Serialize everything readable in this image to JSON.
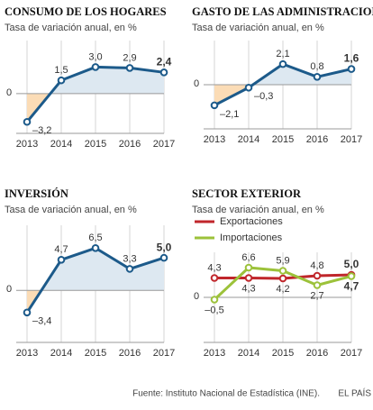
{
  "chart_data": [
    {
      "type": "line",
      "title": "CONSUMO DE LOS HOGARES",
      "subtitle": "Tasa de variación anual, en %",
      "categories": [
        "2013",
        "2014",
        "2015",
        "2016",
        "2017"
      ],
      "values": [
        -3.2,
        1.5,
        3.0,
        2.9,
        2.4
      ],
      "value_labels": [
        "–3,2",
        "1,5",
        "3,0",
        "2,9",
        "2,4"
      ],
      "color": "#1c5a8a",
      "fill_positive": "#dde8f1",
      "fill_negative": "#fbdcb6",
      "ylim": [
        -4.5,
        6
      ],
      "yticks": [
        0
      ]
    },
    {
      "type": "line",
      "title": "GASTO DE LAS ADMINISTRACIONES",
      "subtitle": "Tasa de variación anual, en %",
      "categories": [
        "2013",
        "2014",
        "2015",
        "2016",
        "2017"
      ],
      "values": [
        -2.1,
        -0.3,
        2.1,
        0.8,
        1.6
      ],
      "value_labels": [
        "–2,1",
        "–0,3",
        "2,1",
        "0,8",
        "1,6"
      ],
      "color": "#1c5a8a",
      "fill_positive": "#dde8f1",
      "fill_negative": "#fbdcb6",
      "ylim": [
        -4.5,
        4.5
      ],
      "yticks": [
        0
      ]
    },
    {
      "type": "line",
      "title": "INVERSIÓN",
      "subtitle": "Tasa de variación anual, en %",
      "categories": [
        "2013",
        "2014",
        "2015",
        "2016",
        "2017"
      ],
      "values": [
        -3.4,
        4.7,
        6.5,
        3.3,
        5.0
      ],
      "value_labels": [
        "–3,4",
        "4,7",
        "6,5",
        "3,3",
        "5,0"
      ],
      "color": "#1c5a8a",
      "fill_positive": "#dde8f1",
      "fill_negative": "#fbdcb6",
      "ylim": [
        -8,
        10
      ],
      "yticks": [
        0
      ]
    },
    {
      "type": "line",
      "title": "SECTOR EXTERIOR",
      "subtitle": "Tasa de variación anual, en %",
      "categories": [
        "2013",
        "2014",
        "2015",
        "2016",
        "2017"
      ],
      "series": [
        {
          "name": "Exportaciones",
          "color": "#c0262b",
          "values": [
            4.3,
            4.3,
            4.2,
            4.8,
            5.0
          ],
          "value_labels": [
            "4,3",
            "4,3",
            "4,2",
            "4,8",
            "5,0"
          ]
        },
        {
          "name": "Importaciones",
          "color": "#9cc23a",
          "values": [
            -0.5,
            6.6,
            5.9,
            2.7,
            4.7
          ],
          "value_labels": [
            "–0,5",
            "6,6",
            "5,9",
            "2,7",
            "4,7"
          ]
        }
      ],
      "legend": "top-left",
      "ylim": [
        -10,
        10
      ],
      "yticks": [
        0
      ]
    }
  ],
  "footer": {
    "source": "Fuente: Instituto Nacional de Estadística (INE).",
    "brand": "EL PAÍS"
  }
}
